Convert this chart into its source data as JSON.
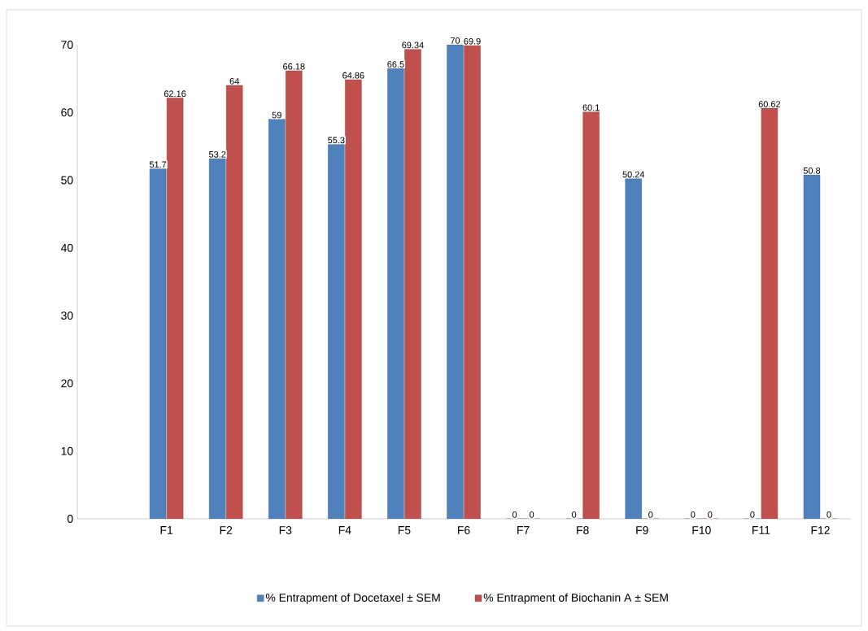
{
  "chart_data": {
    "type": "bar",
    "categories": [
      null,
      "F1",
      "F2",
      "F3",
      "F4",
      "F5",
      "F6",
      "F7",
      "F8",
      "F9",
      "F10",
      "F11",
      "F12"
    ],
    "series": [
      {
        "name": "% Entrapment of Docetaxel ± SEM",
        "color": "#4f81bd",
        "values": [
          null,
          51.7,
          53.2,
          59,
          55.3,
          66.5,
          70,
          0,
          0,
          50.24,
          0,
          0,
          50.8
        ]
      },
      {
        "name": "% Entrapment of Biochanin A ± SEM",
        "color": "#c0504d",
        "values": [
          null,
          62.16,
          64,
          66.18,
          64.86,
          69.34,
          69.9,
          0,
          60.1,
          0,
          0,
          60.62,
          0
        ]
      }
    ],
    "ylim": [
      0,
      70
    ],
    "yticks": [
      0,
      10,
      20,
      30,
      40,
      50,
      60,
      70
    ],
    "data_labels": true,
    "legend": "bottom"
  }
}
